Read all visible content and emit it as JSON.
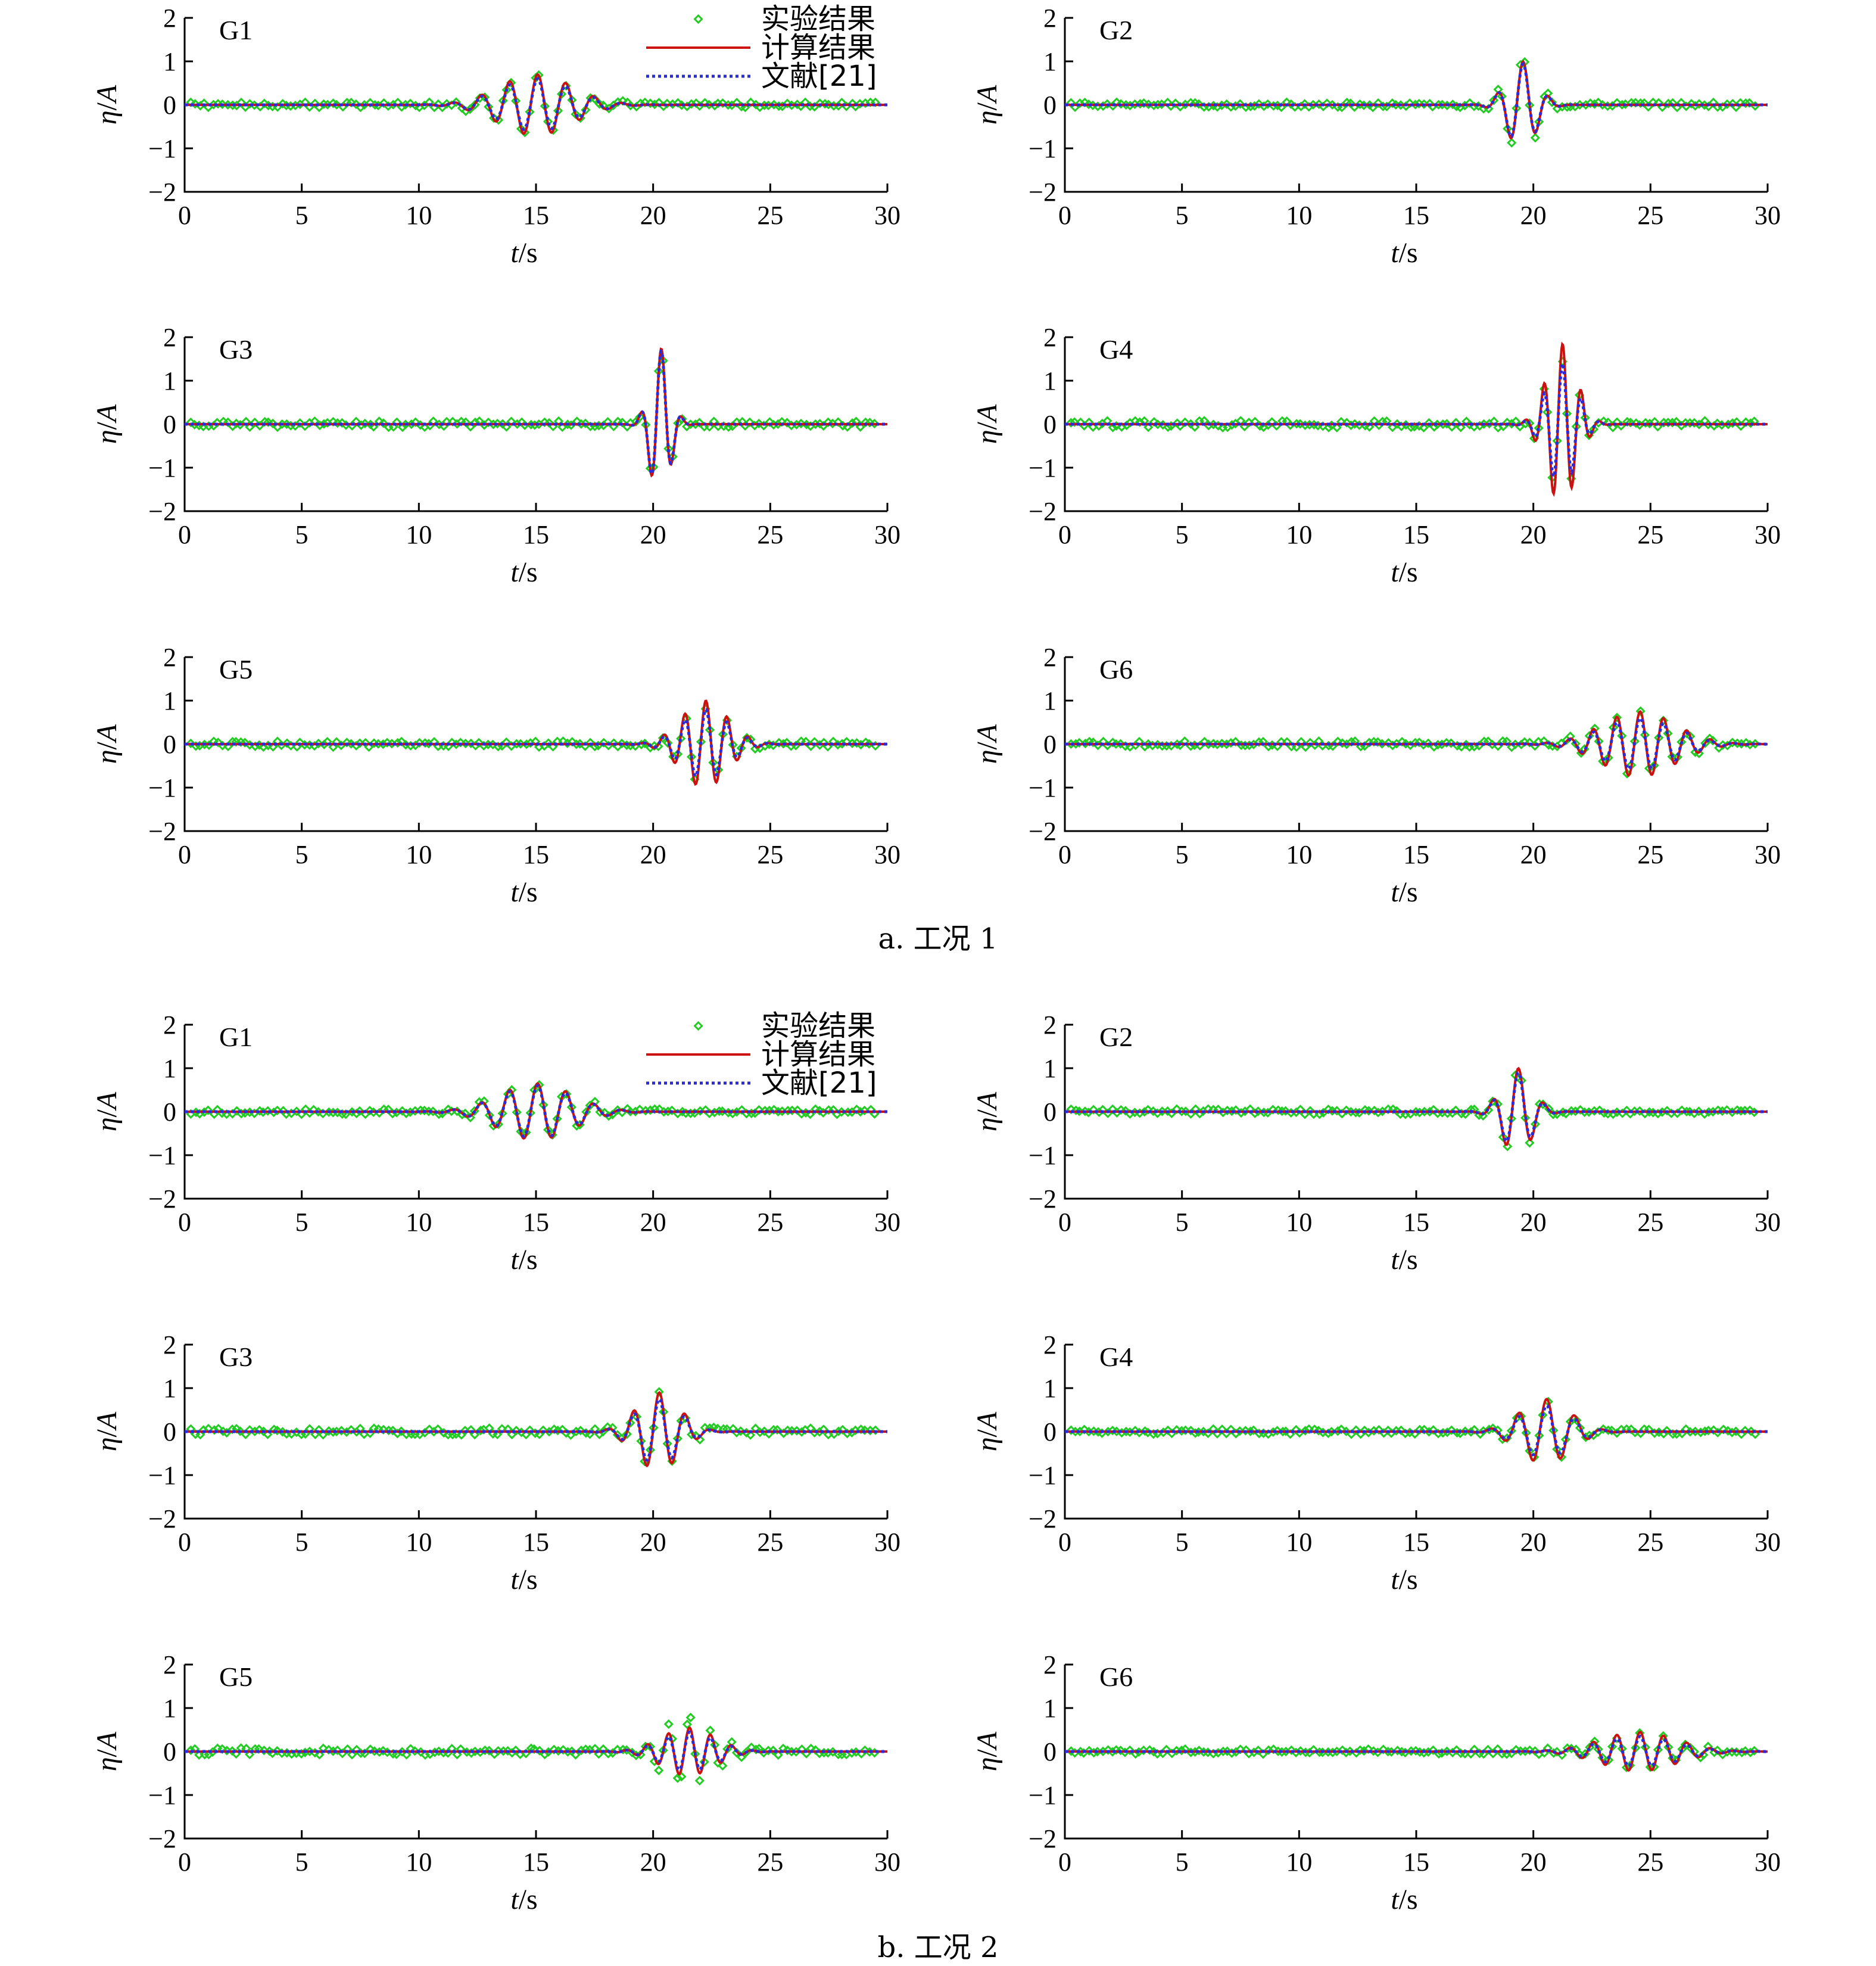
{
  "legend": {
    "experiment": "实验结果",
    "computed": "计算结果",
    "reference": "文献[21]"
  },
  "axes": {
    "xlabel_italic": "t",
    "xlabel_unit": "/s",
    "ylabel_italic_eta": "η",
    "ylabel_slash": "/",
    "ylabel_italic_A": "A",
    "xticks": [
      0,
      5,
      10,
      15,
      20,
      25,
      30
    ],
    "yticks": [
      -2,
      -1,
      0,
      1,
      2
    ],
    "xlim": [
      0,
      30
    ],
    "ylim": [
      -2,
      2
    ]
  },
  "colors": {
    "experiment": "#22cc22",
    "computed": "#cc1111",
    "reference": "#2b2bd9"
  },
  "chart_data": [
    {
      "type": "line",
      "group_caption": "a. 工况 1",
      "panels": [
        {
          "label": "G1",
          "series": [
            {
              "name": "实验结果",
              "style": "markers",
              "wave_center": 15.0,
              "wave_width": 2.2,
              "amplitude": 0.65,
              "period": 1.2,
              "noise": 0.06
            },
            {
              "name": "计算结果",
              "style": "line",
              "wave_center": 15.0,
              "wave_width": 2.2,
              "amplitude": 0.7,
              "period": 1.2
            },
            {
              "name": "文献[21]",
              "style": "dotted",
              "wave_center": 15.0,
              "wave_width": 2.2,
              "amplitude": 0.6,
              "period": 1.2
            }
          ]
        },
        {
          "label": "G2",
          "series": [
            {
              "name": "实验结果",
              "style": "markers",
              "wave_center": 19.5,
              "wave_width": 0.9,
              "amplitude": 1.1,
              "period": 1.1,
              "noise": 0.06
            },
            {
              "name": "计算结果",
              "style": "line",
              "wave_center": 19.5,
              "wave_width": 0.9,
              "amplitude": 1.0,
              "period": 1.1
            },
            {
              "name": "文献[21]",
              "style": "dotted",
              "wave_center": 19.5,
              "wave_width": 0.9,
              "amplitude": 0.95,
              "period": 1.1
            }
          ]
        },
        {
          "label": "G3",
          "series": [
            {
              "name": "实验结果",
              "style": "markers",
              "wave_center": 20.3,
              "wave_width": 0.6,
              "amplitude": 1.8,
              "period": 0.9,
              "noise": 0.07
            },
            {
              "name": "计算结果",
              "style": "line",
              "wave_center": 20.3,
              "wave_width": 0.6,
              "amplitude": 1.75,
              "period": 0.9
            },
            {
              "name": "文献[21]",
              "style": "dotted",
              "wave_center": 20.3,
              "wave_width": 0.6,
              "amplitude": 1.7,
              "period": 0.9
            }
          ]
        },
        {
          "label": "G4",
          "series": [
            {
              "name": "实验结果",
              "style": "markers",
              "wave_center": 21.2,
              "wave_width": 0.9,
              "amplitude": 1.5,
              "period": 0.8,
              "noise": 0.08
            },
            {
              "name": "计算结果",
              "style": "line",
              "wave_center": 21.2,
              "wave_width": 0.9,
              "amplitude": 1.85,
              "period": 0.8
            },
            {
              "name": "文献[21]",
              "style": "dotted",
              "wave_center": 21.2,
              "wave_width": 0.9,
              "amplitude": 1.4,
              "period": 0.8
            }
          ]
        },
        {
          "label": "G5",
          "series": [
            {
              "name": "实验结果",
              "style": "markers",
              "wave_center": 22.2,
              "wave_width": 1.4,
              "amplitude": 0.85,
              "period": 0.9,
              "noise": 0.07
            },
            {
              "name": "计算结果",
              "style": "line",
              "wave_center": 22.2,
              "wave_width": 1.4,
              "amplitude": 1.0,
              "period": 0.9
            },
            {
              "name": "文献[21]",
              "style": "dotted",
              "wave_center": 22.2,
              "wave_width": 1.4,
              "amplitude": 0.8,
              "period": 0.9
            }
          ]
        },
        {
          "label": "G6",
          "series": [
            {
              "name": "实验结果",
              "style": "markers",
              "wave_center": 24.5,
              "wave_width": 2.2,
              "amplitude": 0.7,
              "period": 1.0,
              "noise": 0.07
            },
            {
              "name": "计算结果",
              "style": "line",
              "wave_center": 24.5,
              "wave_width": 2.2,
              "amplitude": 0.75,
              "period": 1.0
            },
            {
              "name": "文献[21]",
              "style": "dotted",
              "wave_center": 24.5,
              "wave_width": 2.2,
              "amplitude": 0.6,
              "period": 1.0
            }
          ]
        }
      ]
    },
    {
      "type": "line",
      "group_caption": "b. 工况 2",
      "panels": [
        {
          "label": "G1",
          "series": [
            {
              "name": "实验结果",
              "style": "markers",
              "wave_center": 15.0,
              "wave_width": 2.2,
              "amplitude": 0.65,
              "period": 1.2,
              "noise": 0.06
            },
            {
              "name": "计算结果",
              "style": "line",
              "wave_center": 15.0,
              "wave_width": 2.2,
              "amplitude": 0.65,
              "period": 1.2
            },
            {
              "name": "文献[21]",
              "style": "dotted",
              "wave_center": 15.0,
              "wave_width": 2.2,
              "amplitude": 0.6,
              "period": 1.2
            }
          ]
        },
        {
          "label": "G2",
          "series": [
            {
              "name": "实验结果",
              "style": "markers",
              "wave_center": 19.3,
              "wave_width": 0.9,
              "amplitude": 1.1,
              "period": 1.1,
              "noise": 0.06
            },
            {
              "name": "计算结果",
              "style": "line",
              "wave_center": 19.3,
              "wave_width": 0.9,
              "amplitude": 1.0,
              "period": 1.1
            },
            {
              "name": "文献[21]",
              "style": "dotted",
              "wave_center": 19.3,
              "wave_width": 0.9,
              "amplitude": 0.9,
              "period": 1.1
            }
          ]
        },
        {
          "label": "G3",
          "series": [
            {
              "name": "实验结果",
              "style": "markers",
              "wave_center": 20.2,
              "wave_width": 1.3,
              "amplitude": 0.9,
              "period": 1.1,
              "noise": 0.08
            },
            {
              "name": "计算结果",
              "style": "line",
              "wave_center": 20.2,
              "wave_width": 1.3,
              "amplitude": 0.9,
              "period": 1.1
            },
            {
              "name": "文献[21]",
              "style": "dotted",
              "wave_center": 20.2,
              "wave_width": 1.3,
              "amplitude": 0.75,
              "period": 1.1
            }
          ]
        },
        {
          "label": "G4",
          "series": [
            {
              "name": "实验结果",
              "style": "markers",
              "wave_center": 20.5,
              "wave_width": 1.5,
              "amplitude": 0.7,
              "period": 1.2,
              "noise": 0.06
            },
            {
              "name": "计算结果",
              "style": "line",
              "wave_center": 20.5,
              "wave_width": 1.5,
              "amplitude": 0.75,
              "period": 1.2
            },
            {
              "name": "文献[21]",
              "style": "dotted",
              "wave_center": 20.5,
              "wave_width": 1.5,
              "amplitude": 0.6,
              "period": 1.2
            }
          ]
        },
        {
          "label": "G5",
          "series": [
            {
              "name": "实验结果",
              "style": "markers",
              "wave_center": 21.5,
              "wave_width": 1.6,
              "amplitude": 0.75,
              "period": 0.9,
              "noise": 0.08
            },
            {
              "name": "计算结果",
              "style": "line",
              "wave_center": 21.5,
              "wave_width": 1.6,
              "amplitude": 0.55,
              "period": 0.9
            },
            {
              "name": "文献[21]",
              "style": "dotted",
              "wave_center": 21.5,
              "wave_width": 1.6,
              "amplitude": 0.45,
              "period": 0.9
            }
          ]
        },
        {
          "label": "G6",
          "series": [
            {
              "name": "实验结果",
              "style": "markers",
              "wave_center": 24.5,
              "wave_width": 2.3,
              "amplitude": 0.4,
              "period": 1.0,
              "noise": 0.06
            },
            {
              "name": "计算结果",
              "style": "line",
              "wave_center": 24.5,
              "wave_width": 2.3,
              "amplitude": 0.45,
              "period": 1.0
            },
            {
              "name": "文献[21]",
              "style": "dotted",
              "wave_center": 24.5,
              "wave_width": 2.3,
              "amplitude": 0.35,
              "period": 1.0
            }
          ]
        }
      ]
    }
  ]
}
